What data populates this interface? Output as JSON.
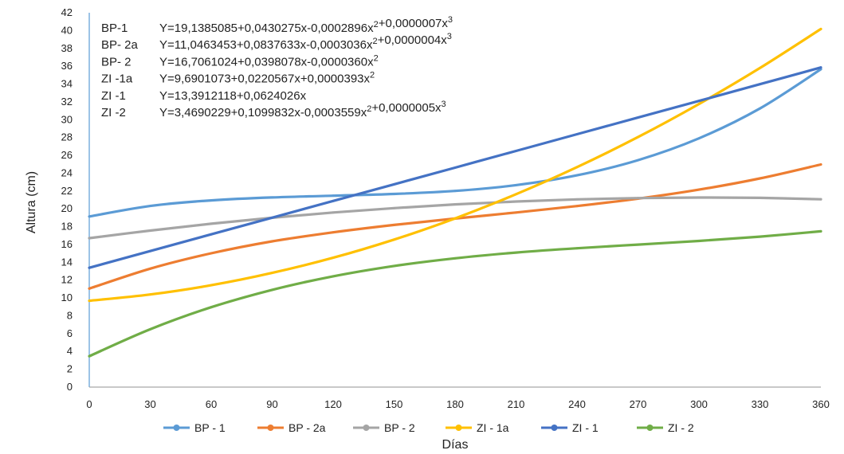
{
  "chart_data": {
    "type": "line",
    "xlabel": "Días",
    "ylabel": "Altura (cm)",
    "xlim": [
      0,
      360
    ],
    "ylim": [
      0,
      42
    ],
    "x_ticks": [
      "0",
      "30",
      "60",
      "90",
      "120",
      "150",
      "180",
      "210",
      "240",
      "270",
      "300",
      "330",
      "360"
    ],
    "y_ticks": [
      "0",
      "2",
      "4",
      "6",
      "8",
      "10",
      "12",
      "14",
      "16",
      "18",
      "20",
      "22",
      "24",
      "26",
      "28",
      "30",
      "32",
      "34",
      "36",
      "38",
      "40",
      "42"
    ],
    "grid": false,
    "legend_position": "bottom",
    "x": [
      0,
      30,
      60,
      90,
      120,
      150,
      180,
      210,
      240,
      270,
      300,
      330,
      360
    ],
    "series": [
      {
        "name": "BP - 1",
        "color": "#5B9BD5",
        "values": [
          19.14,
          20.32,
          20.95,
          21.28,
          21.47,
          21.67,
          22.01,
          22.66,
          23.76,
          25.46,
          27.91,
          31.26,
          35.66
        ]
      },
      {
        "name": "BP - 2a",
        "color": "#ED7D31",
        "values": [
          11.05,
          13.29,
          15.01,
          16.35,
          17.36,
          18.19,
          18.91,
          19.59,
          20.31,
          21.14,
          22.15,
          23.41,
          24.98
        ]
      },
      {
        "name": "BP - 2",
        "color": "#A5A5A5",
        "values": [
          16.71,
          17.56,
          18.33,
          19.0,
          19.59,
          20.08,
          20.5,
          20.82,
          21.06,
          21.21,
          21.27,
          21.23,
          21.07
        ]
      },
      {
        "name": "ZI - 1a",
        "color": "#FFC000",
        "values": [
          9.69,
          10.39,
          11.43,
          12.81,
          14.51,
          16.55,
          18.93,
          21.64,
          24.68,
          28.05,
          31.76,
          35.8,
          40.18
        ]
      },
      {
        "name": "ZI - 1",
        "color": "#4472C4",
        "values": [
          13.39,
          15.26,
          17.14,
          19.01,
          20.88,
          22.75,
          24.62,
          26.5,
          28.37,
          30.24,
          32.11,
          33.98,
          35.86
        ]
      },
      {
        "name": "ZI - 2",
        "color": "#70AD47",
        "values": [
          3.47,
          6.49,
          8.96,
          10.91,
          12.43,
          13.59,
          14.45,
          15.09,
          15.58,
          15.99,
          16.4,
          16.88,
          17.48
        ]
      }
    ],
    "annotations": [
      {
        "label": "BP-1",
        "formula": "Y=19,1385085+0,0430275x-0,0002896x²+0,0000007x³"
      },
      {
        "label": "BP- 2a",
        "formula": "Y=11,0463453+0,0837633x-0,0003036x²+0,0000004x³"
      },
      {
        "label": "BP- 2",
        "formula": "Y=16,7061024+0,0398078x-0,0000360x²"
      },
      {
        "label": "ZI -1a",
        "formula": "Y=9,6901073+0,0220567x+0,0000393x²"
      },
      {
        "label": "ZI -1",
        "formula": "Y=13,3912118+0,0624026x"
      },
      {
        "label": "ZI -2",
        "formula": "Y=3,4690229+0,1099832x-0,0003559x²+0,0000005x³"
      }
    ]
  }
}
